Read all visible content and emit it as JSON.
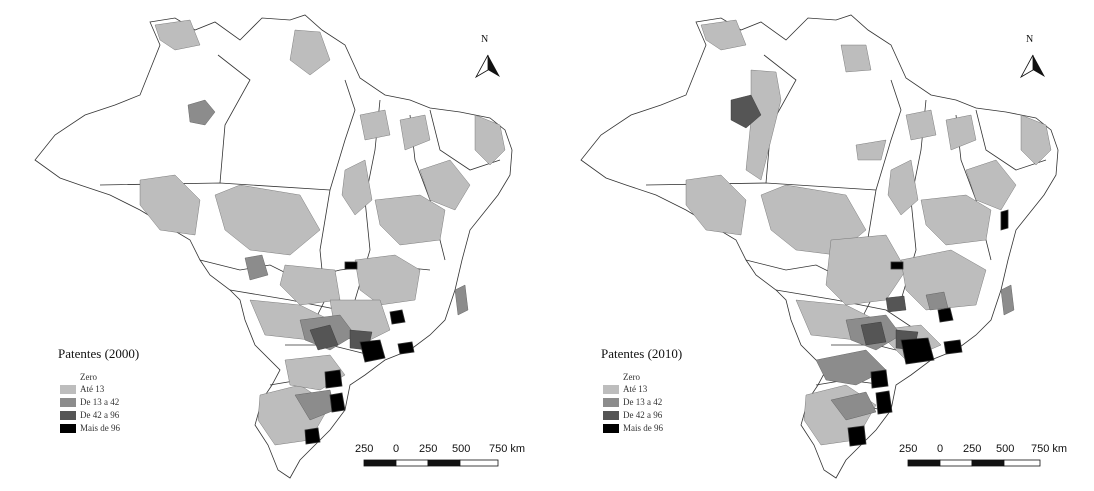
{
  "maps": [
    {
      "legend_title": "Patentes (2000)",
      "legend": [
        {
          "label": "Zero",
          "color": "#ffffff"
        },
        {
          "label": "Até 13",
          "color": "#bdbdbd"
        },
        {
          "label": "De 13 a 42",
          "color": "#8c8c8c"
        },
        {
          "label": "De 42 a 96",
          "color": "#555555"
        },
        {
          "label": "Mais de 96",
          "color": "#000000"
        }
      ]
    },
    {
      "legend_title": "Patentes (2010)",
      "legend": [
        {
          "label": "Zero",
          "color": "#ffffff"
        },
        {
          "label": "Até 13",
          "color": "#bdbdbd"
        },
        {
          "label": "De 13 a 42",
          "color": "#8c8c8c"
        },
        {
          "label": "De 42 a 96",
          "color": "#555555"
        },
        {
          "label": "Mais de 96",
          "color": "#000000"
        }
      ]
    }
  ],
  "north_label": "N",
  "scale_labels": [
    "250",
    "0",
    "250",
    "500",
    "750 km"
  ]
}
